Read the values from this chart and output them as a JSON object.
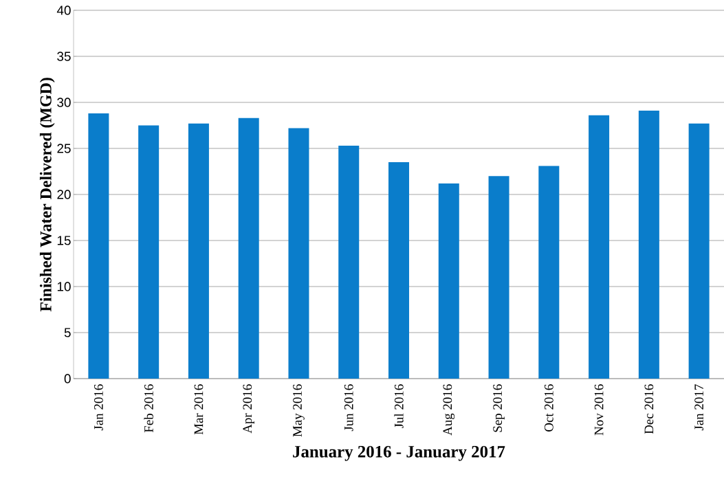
{
  "chart_data": {
    "type": "bar",
    "xlabel": "January 2016 - January 2017",
    "ylabel": "Finished Water Delivered (MGD)",
    "categories": [
      "Jan 2016",
      "Feb 2016",
      "Mar 2016",
      "Apr 2016",
      "May 2016",
      "Jun 2016",
      "Jul 2016",
      "Aug 2016",
      "Sep 2016",
      "Oct 2016",
      "Nov 2016",
      "Dec 2016",
      "Jan 2017"
    ],
    "values": [
      28.8,
      27.5,
      27.7,
      28.3,
      27.2,
      25.3,
      23.5,
      21.2,
      22.0,
      23.1,
      28.6,
      29.1,
      27.7
    ],
    "color": "#0a7dcb",
    "ylim": [
      0,
      40
    ],
    "yticks": [
      0,
      5,
      10,
      15,
      20,
      25,
      30,
      35,
      40
    ],
    "grid": "y"
  }
}
